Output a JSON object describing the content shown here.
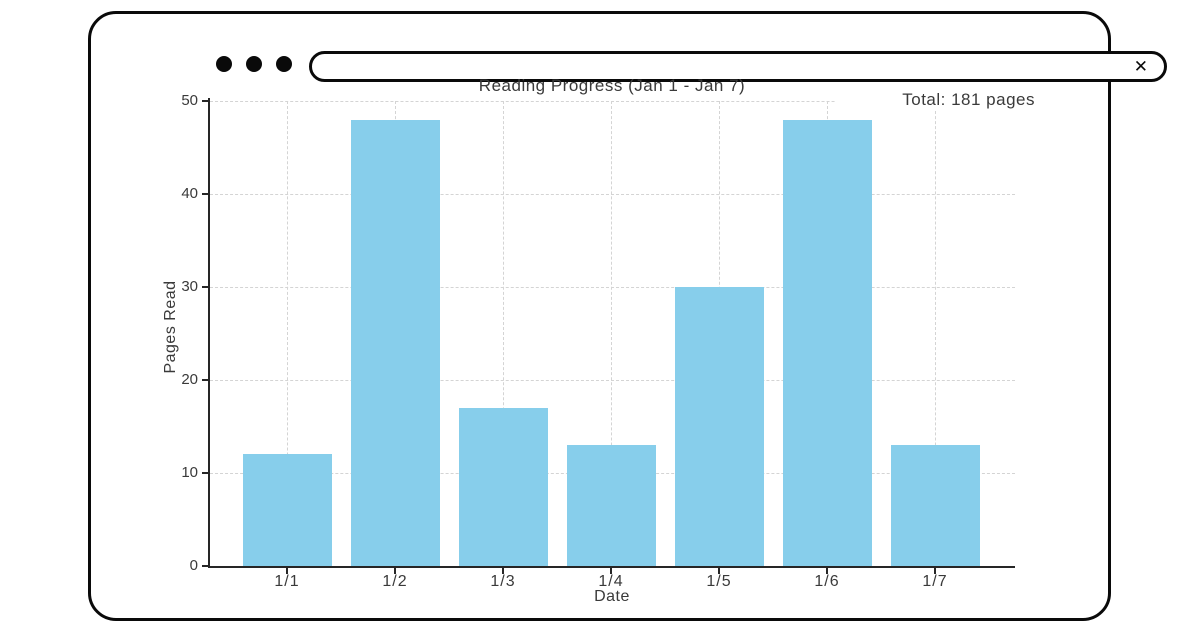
{
  "window": {
    "url_bar": {
      "value": "",
      "close_icon": "✕"
    }
  },
  "chart_data": {
    "type": "bar",
    "title": "Reading Progress (Jan 1 - Jan 7)",
    "categories": [
      "1/1",
      "1/2",
      "1/3",
      "1/4",
      "1/5",
      "1/6",
      "1/7"
    ],
    "values": [
      12,
      48,
      17,
      13,
      30,
      48,
      13
    ],
    "xlabel": "Date",
    "ylabel": "Pages Read",
    "ylim": [
      0,
      50
    ],
    "yticks": [
      0,
      10,
      20,
      30,
      40,
      50
    ],
    "bar_color": "#87CEEB",
    "grid": true,
    "legend": "none",
    "annotation": "Total: 181 pages"
  }
}
